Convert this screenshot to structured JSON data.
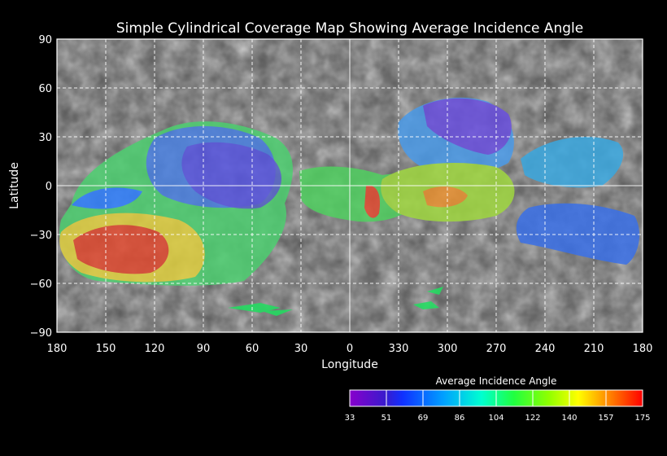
{
  "title": "Simple Cylindrical Coverage Map Showing Average Incidence Angle",
  "axes": {
    "xlabel": "Longitude",
    "ylabel": "Latitude",
    "x_ticks": [
      "180",
      "150",
      "120",
      "90",
      "60",
      "30",
      "0",
      "330",
      "300",
      "270",
      "240",
      "210",
      "180"
    ],
    "y_ticks": [
      "90",
      "60",
      "30",
      "0",
      "−30",
      "−60",
      "−90"
    ]
  },
  "colorbar": {
    "title": "Average Incidence Angle",
    "ticks": [
      "33",
      "51",
      "69",
      "86",
      "104",
      "122",
      "140",
      "157",
      "175"
    ],
    "stops": [
      "#cc00ff",
      "#7a00cc",
      "#2020ff",
      "#00a0ff",
      "#00ffd0",
      "#00ff40",
      "#80ff00",
      "#ffff00",
      "#ff8000",
      "#ff0000"
    ]
  },
  "regions": [
    {
      "id": "central-north-blob",
      "color": "#3aa0e0"
    },
    {
      "id": "east-north-blob",
      "color": "#6a4fe0"
    },
    {
      "id": "west-south-blob",
      "color": "#e04030"
    },
    {
      "id": "central-south-blob",
      "color": "#a0e040"
    }
  ]
}
